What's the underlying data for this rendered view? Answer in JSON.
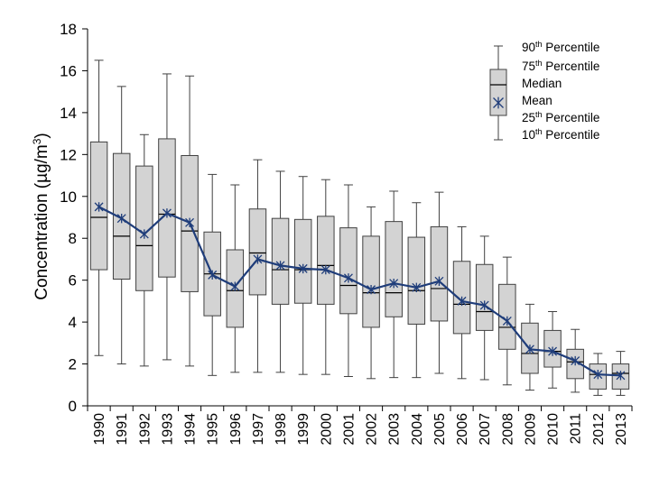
{
  "chart_data": {
    "type": "box",
    "title": "",
    "xlabel": "",
    "ylabel": {
      "main": "Concentration (µg/m",
      "sup": "3",
      "end": ")"
    },
    "ylim": [
      0,
      18
    ],
    "yticks": [
      "0",
      "2",
      "4",
      "6",
      "8",
      "10",
      "12",
      "14",
      "16",
      "18"
    ],
    "categories": [
      "1990",
      "1991",
      "1992",
      "1993",
      "1994",
      "1995",
      "1996",
      "1997",
      "1998",
      "1999",
      "2000",
      "2001",
      "2002",
      "2003",
      "2004",
      "2005",
      "2006",
      "2007",
      "2008",
      "2009",
      "2010",
      "2011",
      "2012",
      "2013"
    ],
    "series": [
      {
        "name": "90th Percentile",
        "values": [
          16.5,
          15.25,
          12.95,
          15.85,
          15.75,
          11.05,
          10.55,
          11.75,
          11.2,
          10.95,
          10.8,
          10.55,
          9.5,
          10.25,
          9.7,
          10.2,
          8.55,
          8.1,
          7.1,
          4.85,
          4.5,
          3.65,
          2.5,
          2.6
        ]
      },
      {
        "name": "75th Percentile",
        "values": [
          12.6,
          12.05,
          11.45,
          12.75,
          11.95,
          8.3,
          7.45,
          9.4,
          8.95,
          8.9,
          9.05,
          8.5,
          8.1,
          8.8,
          8.05,
          8.55,
          6.9,
          6.75,
          5.8,
          3.95,
          3.6,
          2.7,
          2.0,
          2.0
        ]
      },
      {
        "name": "Median",
        "values": [
          9.0,
          8.1,
          7.65,
          9.15,
          8.35,
          6.3,
          5.5,
          7.3,
          6.5,
          6.5,
          6.7,
          5.75,
          5.4,
          5.4,
          5.5,
          5.6,
          4.85,
          4.5,
          3.75,
          2.5,
          2.6,
          2.1,
          1.5,
          1.55
        ]
      },
      {
        "name": "Mean",
        "values": [
          9.5,
          8.95,
          8.2,
          9.2,
          8.75,
          6.25,
          5.7,
          7.0,
          6.7,
          6.55,
          6.5,
          6.1,
          5.55,
          5.85,
          5.65,
          5.95,
          5.0,
          4.8,
          4.05,
          2.7,
          2.6,
          2.15,
          1.5,
          1.45
        ]
      },
      {
        "name": "25th Percentile",
        "values": [
          6.5,
          6.05,
          5.5,
          6.15,
          5.45,
          4.3,
          3.75,
          5.3,
          4.85,
          4.9,
          4.85,
          4.4,
          3.75,
          4.25,
          3.9,
          4.05,
          3.45,
          3.6,
          2.7,
          1.55,
          1.85,
          1.3,
          0.8,
          0.8
        ]
      },
      {
        "name": "10th Percentile",
        "values": [
          2.4,
          2.0,
          1.9,
          2.2,
          1.9,
          1.45,
          1.6,
          1.6,
          1.6,
          1.5,
          1.5,
          1.4,
          1.3,
          1.35,
          1.35,
          1.55,
          1.3,
          1.25,
          1.0,
          0.75,
          0.85,
          0.65,
          0.5,
          0.5
        ]
      }
    ],
    "legend": {
      "position": "top-right",
      "items": [
        {
          "base": "90",
          "sup": "th",
          "rest": " Percentile"
        },
        {
          "base": "75",
          "sup": "th",
          "rest": " Percentile"
        },
        {
          "base": "Median",
          "sup": "",
          "rest": ""
        },
        {
          "base": "Mean",
          "sup": "",
          "rest": ""
        },
        {
          "base": "25",
          "sup": "th",
          "rest": " Percentile"
        },
        {
          "base": "10",
          "sup": "th",
          "rest": " Percentile"
        }
      ]
    },
    "colors": {
      "box_fill": "#d3d3d3",
      "box_stroke": "#404040",
      "mean_line": "#1f3d7a",
      "axis": "#000000"
    }
  }
}
